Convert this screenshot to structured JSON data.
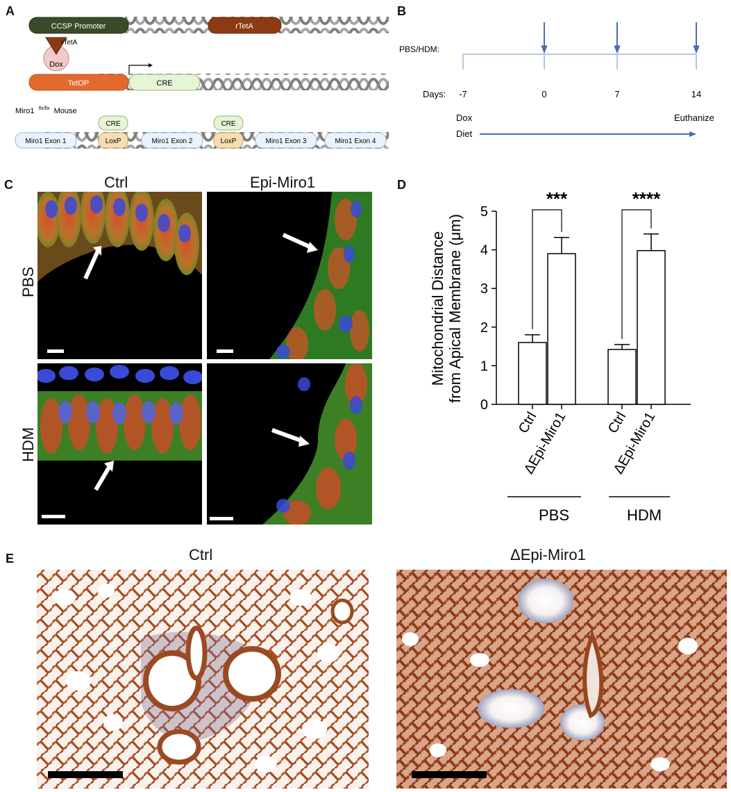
{
  "panels": {
    "a": "A",
    "b": "B",
    "c": "C",
    "d": "D",
    "e": "E"
  },
  "panelA": {
    "ccsp_promoter": "CCSP Promoter",
    "rtetA_gene": "rTetA",
    "rtetA_protein": "rTetA",
    "dox": "Dox",
    "tetop": "TetOP",
    "cre": "CRE",
    "mouse_label": "Miro1",
    "mouse_sup": "flx/flx",
    "mouse_suffix": "Mouse",
    "cre_top_1": "CRE",
    "cre_top_2": "CRE",
    "exon1": "Miro1 Exon 1",
    "loxp1": "LoxP",
    "exon2": "Miro1 Exon 2",
    "loxp2": "LoxP",
    "exon3": "Miro1 Exon 3",
    "exon4": "Miro1 Exon 4",
    "colors": {
      "ccsp": "#3b4a28",
      "rtetA": "#8b3a14",
      "tetop": "#e36a2e",
      "cre": "#e6f5d6",
      "loxp": "#f7ddb0",
      "exon": "#eaf3fb",
      "dna": "#a9a9a9"
    }
  },
  "panelB": {
    "treatment_label": "PBS/HDM:",
    "days_label": "Days:",
    "day_ticks": [
      "-7",
      "0",
      "7",
      "14"
    ],
    "dox_label": "Dox",
    "diet_label": "Diet",
    "euthanize_label": "Euthanize",
    "line_color": "#b7c7e2",
    "arrow_color": "#4a6db0"
  },
  "panelC": {
    "col_ctrl": "Ctrl",
    "col_epi": "Epi-Miro1",
    "row_pbs": "PBS",
    "row_hdm": "HDM"
  },
  "panelD": {
    "ylabel_line1": "Mitochondrial Distance",
    "ylabel_line2": "from Apical Membrane (μm)",
    "group_pbs": "PBS",
    "group_hdm": "HDM",
    "sig_1": "***",
    "sig_2": "****"
  },
  "chart_data": {
    "type": "bar",
    "categories": [
      "Ctrl",
      "ΔEpi-Miro1",
      "Ctrl",
      "ΔEpi-Miro1"
    ],
    "values": [
      1.6,
      3.9,
      1.42,
      3.98
    ],
    "errors": [
      0.2,
      0.42,
      0.13,
      0.43
    ],
    "groups": [
      {
        "name": "PBS",
        "indices": [
          0,
          1
        ]
      },
      {
        "name": "HDM",
        "indices": [
          2,
          3
        ]
      }
    ],
    "ylabel": "Mitochondrial Distance from Apical Membrane (μm)",
    "ylim": [
      0,
      5
    ],
    "yticks": [
      "0",
      "1",
      "2",
      "3",
      "4",
      "5"
    ],
    "grid": false
  },
  "panelE": {
    "title_ctrl": "Ctrl",
    "title_epi": "ΔEpi-Miro1"
  }
}
